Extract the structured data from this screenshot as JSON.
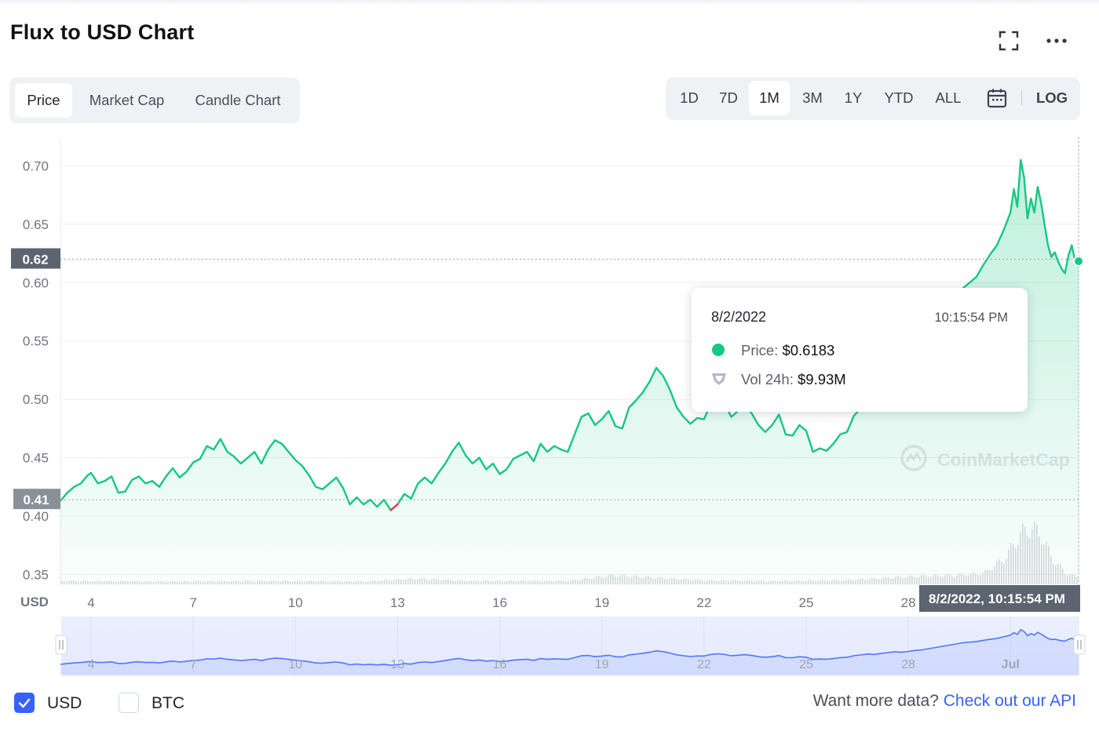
{
  "header": {
    "title": "Flux to USD Chart",
    "fullscreen_icon": "fullscreen-icon",
    "more_icon": "more-horizontal-icon"
  },
  "tabs": [
    {
      "label": "Price",
      "active": true
    },
    {
      "label": "Market Cap",
      "active": false
    },
    {
      "label": "Candle Chart",
      "active": false
    }
  ],
  "ranges": [
    {
      "label": "1D",
      "active": false
    },
    {
      "label": "7D",
      "active": false
    },
    {
      "label": "1M",
      "active": true
    },
    {
      "label": "3M",
      "active": false
    },
    {
      "label": "1Y",
      "active": false
    },
    {
      "label": "YTD",
      "active": false
    },
    {
      "label": "ALL",
      "active": false
    }
  ],
  "calendar_icon": "calendar-icon",
  "log_label": "LOG",
  "tooltip": {
    "date": "8/2/2022",
    "time": "10:15:54 PM",
    "price_label": "Price:",
    "price_value": "$0.6183",
    "vol_label": "Vol 24h:",
    "vol_value": "$9.93M"
  },
  "watermark": "CoinMarketCap",
  "legend": {
    "usd_label": "USD",
    "usd_checked": true,
    "btc_label": "BTC",
    "btc_checked": false
  },
  "api_prompt": "Want more data?",
  "api_link": "Check out our API",
  "colors": {
    "up": "#16c784",
    "down": "#ea3943",
    "navigator_line": "#3861fb",
    "accent": "#3861fb"
  },
  "chart_data": {
    "type": "line",
    "unit_label": "USD",
    "y_ticks": [
      "0.70",
      "0.65",
      "0.60",
      "0.55",
      "0.50",
      "0.45",
      "0.40",
      "0.35"
    ],
    "ylim": [
      0.3395,
      0.7245
    ],
    "x_ticks": [
      "4",
      "7",
      "10",
      "13",
      "16",
      "19",
      "22",
      "25",
      "28"
    ],
    "navigator_ticks": [
      "4",
      "7",
      "10",
      "13",
      "16",
      "19",
      "22",
      "25",
      "28",
      "Jul"
    ],
    "current_price_label": "0.62",
    "current_price": 0.62,
    "baseline_label": "0.41",
    "baseline": 0.414,
    "crosshair_label": "8/2/2022, 10:15:54 PM",
    "x_range_days": [
      3.1,
      33.0
    ],
    "series": [
      {
        "values": [
          [
            3.1,
            0.413
          ],
          [
            3.3,
            0.42
          ],
          [
            3.5,
            0.425
          ],
          [
            3.7,
            0.428
          ],
          [
            3.9,
            0.435
          ],
          [
            4.0,
            0.437
          ],
          [
            4.2,
            0.428
          ],
          [
            4.4,
            0.43
          ],
          [
            4.6,
            0.434
          ],
          [
            4.8,
            0.42
          ],
          [
            5.0,
            0.421
          ],
          [
            5.2,
            0.431
          ],
          [
            5.4,
            0.434
          ],
          [
            5.6,
            0.428
          ],
          [
            5.8,
            0.43
          ],
          [
            6.0,
            0.425
          ],
          [
            6.2,
            0.434
          ],
          [
            6.4,
            0.441
          ],
          [
            6.6,
            0.433
          ],
          [
            6.8,
            0.438
          ],
          [
            7.0,
            0.446
          ],
          [
            7.2,
            0.449
          ],
          [
            7.4,
            0.46
          ],
          [
            7.6,
            0.457
          ],
          [
            7.8,
            0.466
          ],
          [
            8.0,
            0.455
          ],
          [
            8.2,
            0.451
          ],
          [
            8.4,
            0.445
          ],
          [
            8.6,
            0.45
          ],
          [
            8.8,
            0.455
          ],
          [
            9.0,
            0.445
          ],
          [
            9.2,
            0.457
          ],
          [
            9.4,
            0.465
          ],
          [
            9.6,
            0.462
          ],
          [
            9.8,
            0.455
          ],
          [
            10.0,
            0.448
          ],
          [
            10.2,
            0.443
          ],
          [
            10.4,
            0.435
          ],
          [
            10.6,
            0.425
          ],
          [
            10.8,
            0.423
          ],
          [
            11.0,
            0.428
          ],
          [
            11.2,
            0.433
          ],
          [
            11.4,
            0.424
          ],
          [
            11.6,
            0.41
          ],
          [
            11.8,
            0.416
          ],
          [
            12.0,
            0.41
          ],
          [
            12.2,
            0.414
          ],
          [
            12.4,
            0.408
          ],
          [
            12.6,
            0.414
          ],
          [
            12.8,
            0.405
          ],
          [
            13.0,
            0.41
          ],
          [
            13.2,
            0.419
          ],
          [
            13.4,
            0.415
          ],
          [
            13.6,
            0.428
          ],
          [
            13.8,
            0.433
          ],
          [
            14.0,
            0.428
          ],
          [
            14.2,
            0.437
          ],
          [
            14.4,
            0.445
          ],
          [
            14.6,
            0.455
          ],
          [
            14.8,
            0.463
          ],
          [
            15.0,
            0.452
          ],
          [
            15.2,
            0.445
          ],
          [
            15.4,
            0.45
          ],
          [
            15.6,
            0.44
          ],
          [
            15.8,
            0.445
          ],
          [
            16.0,
            0.436
          ],
          [
            16.2,
            0.44
          ],
          [
            16.4,
            0.449
          ],
          [
            16.6,
            0.452
          ],
          [
            16.8,
            0.455
          ],
          [
            17.0,
            0.447
          ],
          [
            17.2,
            0.462
          ],
          [
            17.4,
            0.455
          ],
          [
            17.6,
            0.46
          ],
          [
            17.8,
            0.457
          ],
          [
            18.0,
            0.455
          ],
          [
            18.2,
            0.47
          ],
          [
            18.4,
            0.485
          ],
          [
            18.6,
            0.488
          ],
          [
            18.8,
            0.478
          ],
          [
            19.0,
            0.483
          ],
          [
            19.2,
            0.49
          ],
          [
            19.4,
            0.477
          ],
          [
            19.6,
            0.475
          ],
          [
            19.8,
            0.493
          ],
          [
            20.0,
            0.499
          ],
          [
            20.2,
            0.506
          ],
          [
            20.4,
            0.515
          ],
          [
            20.6,
            0.527
          ],
          [
            20.8,
            0.52
          ],
          [
            21.0,
            0.508
          ],
          [
            21.2,
            0.493
          ],
          [
            21.4,
            0.485
          ],
          [
            21.6,
            0.479
          ],
          [
            21.8,
            0.484
          ],
          [
            22.0,
            0.483
          ],
          [
            22.2,
            0.496
          ],
          [
            22.4,
            0.502
          ],
          [
            22.6,
            0.497
          ],
          [
            22.8,
            0.485
          ],
          [
            23.0,
            0.49
          ],
          [
            23.2,
            0.495
          ],
          [
            23.4,
            0.488
          ],
          [
            23.6,
            0.478
          ],
          [
            23.8,
            0.472
          ],
          [
            24.0,
            0.478
          ],
          [
            24.2,
            0.487
          ],
          [
            24.4,
            0.47
          ],
          [
            24.6,
            0.469
          ],
          [
            24.8,
            0.478
          ],
          [
            25.0,
            0.473
          ],
          [
            25.2,
            0.455
          ],
          [
            25.4,
            0.458
          ],
          [
            25.6,
            0.456
          ],
          [
            25.8,
            0.462
          ],
          [
            26.0,
            0.47
          ],
          [
            26.2,
            0.472
          ],
          [
            26.4,
            0.486
          ],
          [
            26.6,
            0.492
          ],
          [
            26.8,
            0.5
          ],
          [
            27.0,
            0.496
          ],
          [
            27.2,
            0.505
          ],
          [
            27.4,
            0.512
          ],
          [
            27.6,
            0.518
          ],
          [
            27.8,
            0.515
          ],
          [
            28.0,
            0.522
          ],
          [
            28.2,
            0.53
          ],
          [
            28.4,
            0.535
          ],
          [
            28.6,
            0.545
          ],
          [
            28.8,
            0.555
          ],
          [
            29.0,
            0.565
          ],
          [
            29.2,
            0.575
          ],
          [
            29.4,
            0.585
          ],
          [
            29.6,
            0.595
          ],
          [
            29.8,
            0.6
          ],
          [
            30.0,
            0.605
          ],
          [
            30.2,
            0.615
          ],
          [
            30.4,
            0.624
          ],
          [
            30.6,
            0.632
          ],
          [
            30.8,
            0.645
          ],
          [
            31.0,
            0.66
          ],
          [
            31.1,
            0.68
          ],
          [
            31.2,
            0.665
          ],
          [
            31.3,
            0.705
          ],
          [
            31.4,
            0.69
          ],
          [
            31.5,
            0.655
          ],
          [
            31.6,
            0.672
          ],
          [
            31.7,
            0.66
          ],
          [
            31.8,
            0.682
          ],
          [
            31.9,
            0.668
          ],
          [
            32.0,
            0.65
          ],
          [
            32.1,
            0.632
          ],
          [
            32.2,
            0.622
          ],
          [
            32.3,
            0.626
          ],
          [
            32.4,
            0.618
          ],
          [
            32.5,
            0.612
          ],
          [
            32.6,
            0.608
          ],
          [
            32.7,
            0.623
          ],
          [
            32.8,
            0.632
          ],
          [
            32.9,
            0.618
          ],
          [
            33.0,
            0.6183
          ]
        ]
      }
    ],
    "volume": {
      "description_only": false,
      "values": [
        [
          3.1,
          0.06
        ],
        [
          6.0,
          0.05
        ],
        [
          9.0,
          0.06
        ],
        [
          12.0,
          0.05
        ],
        [
          13.6,
          0.1
        ],
        [
          15.0,
          0.06
        ],
        [
          18.0,
          0.06
        ],
        [
          19.3,
          0.16
        ],
        [
          20.5,
          0.12
        ],
        [
          22.0,
          0.07
        ],
        [
          24.0,
          0.06
        ],
        [
          26.0,
          0.07
        ],
        [
          28.2,
          0.14
        ],
        [
          29.3,
          0.16
        ],
        [
          30.2,
          0.2
        ],
        [
          30.8,
          0.45
        ],
        [
          31.3,
          0.9
        ],
        [
          31.6,
          1.0
        ],
        [
          31.9,
          0.85
        ],
        [
          32.2,
          0.45
        ],
        [
          32.6,
          0.2
        ],
        [
          33.0,
          0.12
        ]
      ]
    }
  }
}
